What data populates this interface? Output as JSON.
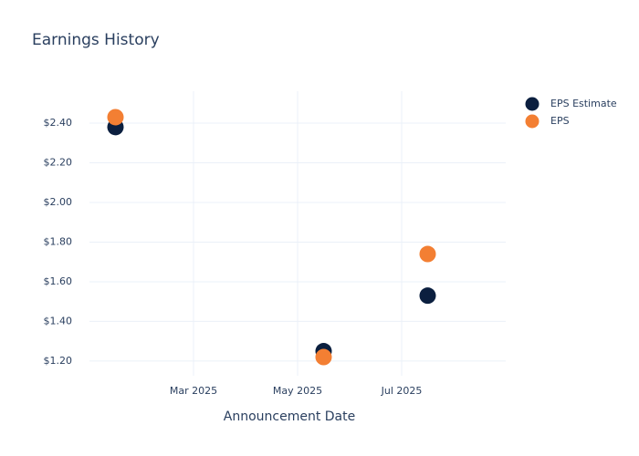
{
  "chart_data": {
    "type": "scatter",
    "title": "Earnings History",
    "x_label": "Announcement Date",
    "x": [
      "2025-01",
      "2025-05",
      "2025-07"
    ],
    "series": [
      {
        "name": "EPS Estimate",
        "color": "#0b1f3f",
        "values": [
          2.38,
          1.25,
          1.53
        ]
      },
      {
        "name": "EPS",
        "color": "#f37f33",
        "values": [
          2.43,
          1.22,
          1.74
        ]
      }
    ],
    "xlim": [
      "2025-01",
      "2025-09"
    ],
    "xticks": [
      {
        "value": "2025-03",
        "label": "Mar 2025"
      },
      {
        "value": "2025-05",
        "label": "May 2025"
      },
      {
        "value": "2025-07",
        "label": "Jul 2025"
      }
    ],
    "ylim": [
      1.126,
      2.561
    ],
    "yticks": [
      {
        "value": 1.2,
        "label": "$1.20"
      },
      {
        "value": 1.4,
        "label": "$1.40"
      },
      {
        "value": 1.6,
        "label": "$1.60"
      },
      {
        "value": 1.8,
        "label": "$1.80"
      },
      {
        "value": 2.0,
        "label": "$2.00"
      },
      {
        "value": 2.2,
        "label": "$2.20"
      },
      {
        "value": 2.4,
        "label": "$2.40"
      }
    ],
    "grid": true,
    "legend": "top-right"
  }
}
